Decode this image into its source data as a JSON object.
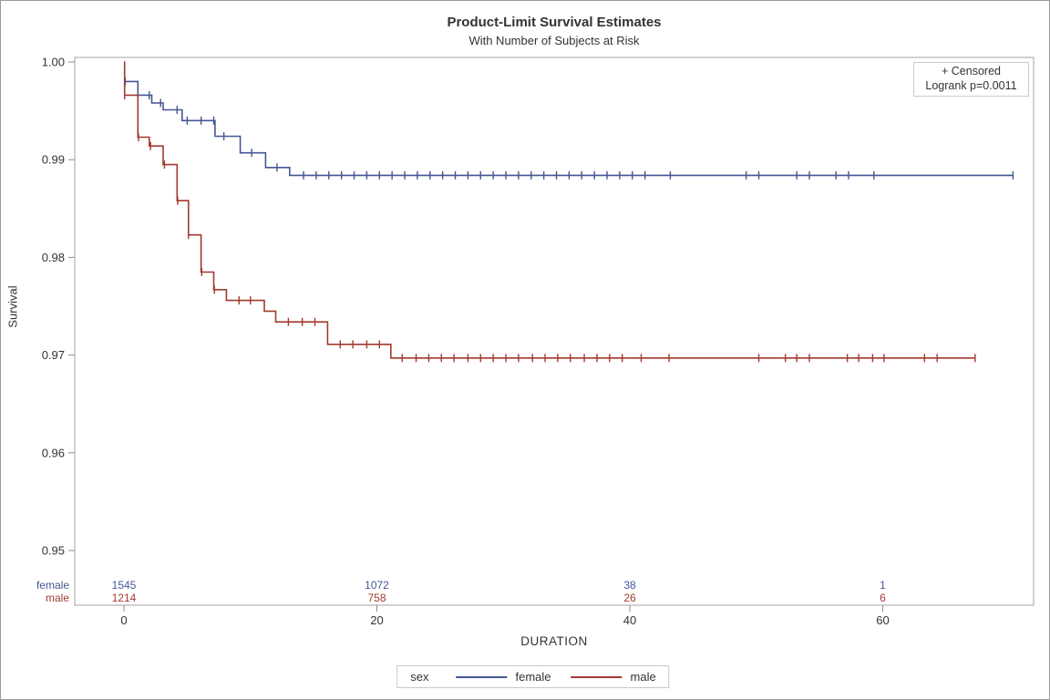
{
  "chart_data": {
    "type": "line",
    "subtype": "kaplan-meier-step",
    "title": "Product-Limit Survival Estimates",
    "subtitle": "With Number of Subjects at Risk",
    "xlabel": "DURATION",
    "ylabel": "Survival",
    "xticks": [
      {
        "v": 0,
        "label": "0"
      },
      {
        "v": 20,
        "label": "20"
      },
      {
        "v": 40,
        "label": "40"
      },
      {
        "v": 60,
        "label": "60"
      }
    ],
    "yticks": [
      {
        "v": 1.0,
        "label": "1.00"
      },
      {
        "v": 0.99,
        "label": "0.99"
      },
      {
        "v": 0.98,
        "label": "0.98"
      },
      {
        "v": 0.97,
        "label": "0.97"
      },
      {
        "v": 0.96,
        "label": "0.96"
      },
      {
        "v": 0.95,
        "label": "0.95"
      }
    ],
    "ylim": [
      0.95,
      1.0
    ],
    "xlim": [
      0,
      70.3
    ],
    "grid": false,
    "series": [
      {
        "name": "female",
        "color": "#445694",
        "steps": [
          [
            0,
            0.998
          ],
          [
            1.1,
            0.9966
          ],
          [
            2.2,
            0.9958
          ],
          [
            3.1,
            0.9951
          ],
          [
            4.6,
            0.994
          ],
          [
            7.2,
            0.9924
          ],
          [
            9.2,
            0.9907
          ],
          [
            11.2,
            0.9892
          ],
          [
            13.1,
            0.9884
          ]
        ],
        "end": 70.3,
        "censor_times": [
          0.1,
          2.0,
          2.9,
          4.2,
          5.0,
          6.1,
          7.1,
          7.9,
          10.1,
          12.1,
          14.2,
          15.2,
          16.2,
          17.2,
          18.2,
          19.2,
          20.2,
          21.2,
          22.2,
          23.2,
          24.2,
          25.2,
          26.2,
          27.2,
          28.2,
          29.2,
          30.2,
          31.2,
          32.2,
          33.2,
          34.2,
          35.2,
          36.2,
          37.2,
          38.2,
          39.2,
          40.2,
          41.2,
          43.2,
          49.2,
          50.2,
          53.2,
          54.2,
          56.3,
          57.3,
          59.3,
          70.3
        ]
      },
      {
        "name": "male",
        "color": "#A23A2E",
        "steps": [
          [
            0,
            1.0
          ],
          [
            0.05,
            0.9966
          ],
          [
            1.1,
            0.9923
          ],
          [
            2.0,
            0.9914
          ],
          [
            3.1,
            0.9895
          ],
          [
            4.2,
            0.9858
          ],
          [
            5.1,
            0.9823
          ],
          [
            6.1,
            0.9785
          ],
          [
            7.1,
            0.9767
          ],
          [
            8.1,
            0.9756
          ],
          [
            11.1,
            0.9745
          ],
          [
            12.0,
            0.9734
          ],
          [
            16.1,
            0.9711
          ],
          [
            21.1,
            0.9697
          ]
        ],
        "end": 67.3,
        "censor_times": [
          0.05,
          1.15,
          2.1,
          3.2,
          4.25,
          5.1,
          6.15,
          7.15,
          9.1,
          10.0,
          13.0,
          14.1,
          15.1,
          17.1,
          18.1,
          19.2,
          20.2,
          22.0,
          23.1,
          24.1,
          25.1,
          26.1,
          27.2,
          28.2,
          29.2,
          30.2,
          31.2,
          32.3,
          33.3,
          34.3,
          35.3,
          36.4,
          37.4,
          38.4,
          39.4,
          40.9,
          43.1,
          50.2,
          52.3,
          53.2,
          54.2,
          57.2,
          58.1,
          59.2,
          60.1,
          63.3,
          64.3,
          67.3
        ]
      }
    ],
    "at_risk_table": {
      "times": [
        0,
        20,
        40,
        60
      ],
      "rows": [
        {
          "label": "female",
          "color": "#445694",
          "counts": [
            "1545",
            "1072",
            "38",
            "1"
          ]
        },
        {
          "label": "male",
          "color": "#A23A2E",
          "counts": [
            "1214",
            "758",
            "26",
            "6"
          ]
        }
      ]
    }
  },
  "inset": {
    "censored_label": "+ Censored",
    "logrank_label": "Logrank p=0.0011"
  },
  "legend": {
    "title": "sex",
    "entries": [
      {
        "label": "female",
        "color": "#445694"
      },
      {
        "label": "male",
        "color": "#A23A2E"
      }
    ]
  },
  "colors": {
    "frame": "#a3a3a3",
    "tick": "#8c8c8c",
    "text": "#333333"
  }
}
